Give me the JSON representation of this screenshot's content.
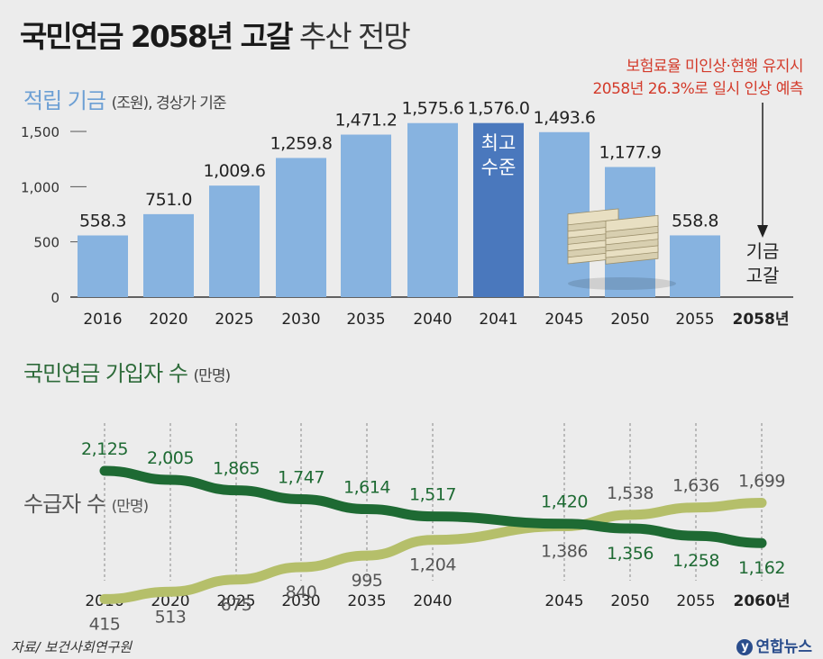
{
  "title": {
    "bold": "국민연금 2058년 고갈",
    "light": " 추산 전망"
  },
  "bar_section": {
    "title": "적립 기금",
    "unit": "(조원), 경상가 기준"
  },
  "note": {
    "line1": "보험료율 미인상·현행 유지시",
    "line2": "2058년 26.3%로 일시 인상 예측"
  },
  "peak_label": [
    "최고",
    "수준"
  ],
  "depletion_label": [
    "기금",
    "고갈"
  ],
  "line_section": {
    "title": "국민연금 가입자 수",
    "unit": "(만명)",
    "title2": "수급자 수",
    "unit2": "(만명)"
  },
  "source": "자료/ 보건사회연구원",
  "brand": "연합뉴스",
  "colors": {
    "bar": "#87b3e0",
    "bar_peak": "#4a78bd",
    "subscribers": "#1e6a33",
    "beneficiaries": "#b5bf6a",
    "note": "#d33a2a"
  },
  "chart_data": [
    {
      "type": "bar",
      "title": "적립 기금",
      "ylabel": "(조원), 경상가 기준",
      "categories": [
        "2016",
        "2020",
        "2025",
        "2030",
        "2035",
        "2040",
        "2041",
        "2045",
        "2050",
        "2055",
        "2058년"
      ],
      "values": [
        558.3,
        751.0,
        1009.6,
        1259.8,
        1471.2,
        1575.6,
        1576.0,
        1493.6,
        1177.9,
        558.8,
        null
      ],
      "value_labels": [
        "558.3",
        "751.0",
        "1,009.6",
        "1,259.8",
        "1,471.2",
        "1,575.6",
        "1,576.0",
        "1,493.6",
        "1,177.9",
        "558.8",
        ""
      ],
      "yticks": [
        0,
        500,
        1000,
        1500
      ],
      "ytick_labels": [
        "0",
        "500",
        "1,000",
        "1,500"
      ],
      "ylim": [
        0,
        1700
      ],
      "highlight_index": 6
    },
    {
      "type": "line",
      "title": "국민연금 가입자 수 / 수급자 수",
      "ylabel": "(만명)",
      "x": [
        2016,
        2020,
        2025,
        2030,
        2035,
        2040,
        2045,
        2050,
        2055,
        2060
      ],
      "x_labels": [
        "2016",
        "2020",
        "2025",
        "2030",
        "2035",
        "2040",
        "2045",
        "2050",
        "2055",
        "2060년"
      ],
      "series": [
        {
          "name": "국민연금 가입자 수",
          "values": [
            2125,
            2005,
            1865,
            1747,
            1614,
            1517,
            1420,
            1356,
            1258,
            1162
          ],
          "labels": [
            "2,125",
            "2,005",
            "1,865",
            "1,747",
            "1,614",
            "1,517",
            "1,420",
            "1,356",
            "1,258",
            "1,162"
          ]
        },
        {
          "name": "수급자 수",
          "values": [
            415,
            513,
            675,
            840,
            995,
            1204,
            1386,
            1538,
            1636,
            1699
          ],
          "labels": [
            "415",
            "513",
            "675",
            "840",
            "995",
            "1,204",
            "1,386",
            "1,538",
            "1,636",
            "1,699"
          ]
        }
      ]
    }
  ]
}
